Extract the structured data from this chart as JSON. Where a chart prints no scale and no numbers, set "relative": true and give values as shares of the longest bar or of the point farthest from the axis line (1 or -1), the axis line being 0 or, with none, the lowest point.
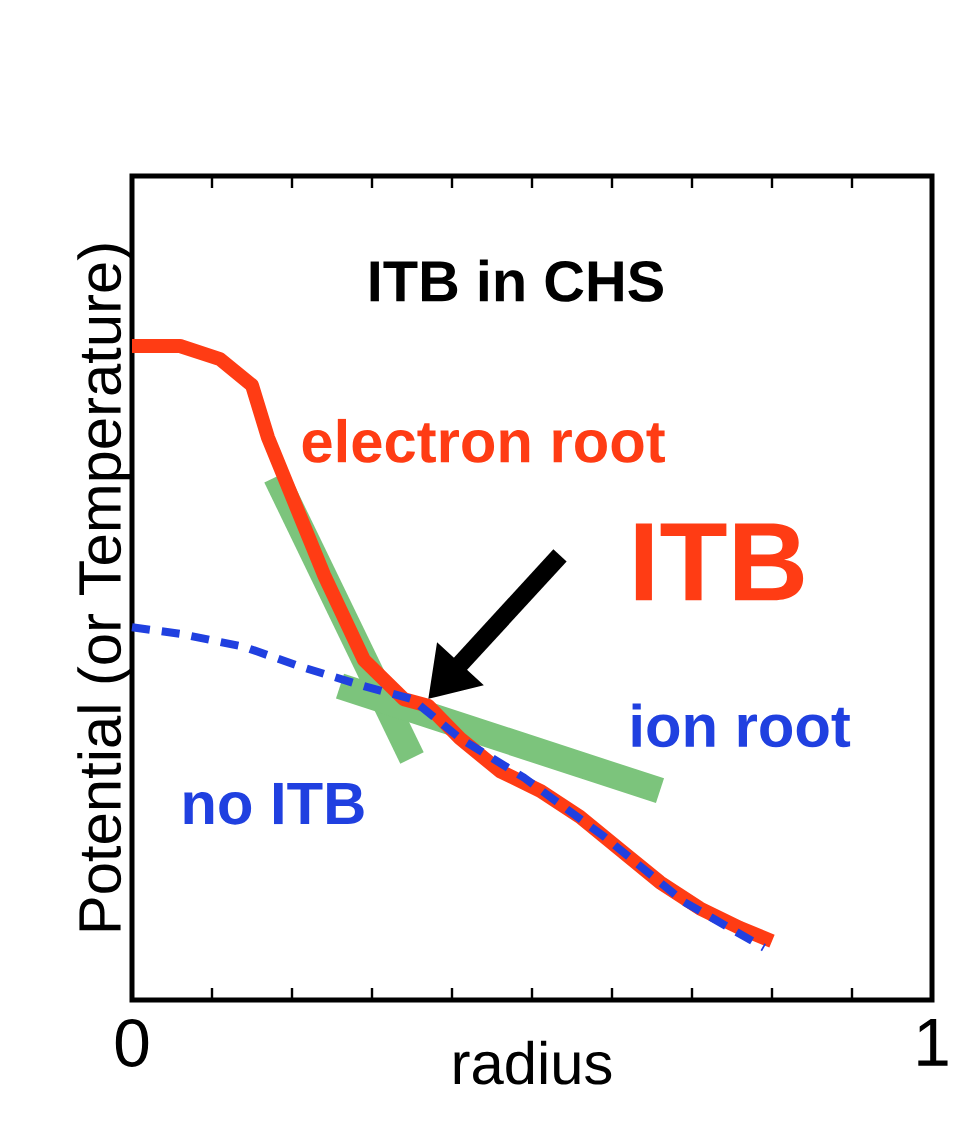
{
  "chart_data": {
    "type": "line",
    "relative": true,
    "title": "ITB in CHS",
    "xlabel": "radius",
    "ylabel": "Potential (or Temperature)",
    "xlim": [
      0,
      1
    ],
    "xticks": [
      0,
      {
        "value": 0.1,
        "label": null
      },
      {
        "value": 0.2,
        "label": null
      },
      {
        "value": 0.3,
        "label": null
      },
      {
        "value": 0.4,
        "label": null
      },
      {
        "value": 0.5,
        "label": null
      },
      {
        "value": 0.6,
        "label": null
      },
      {
        "value": 0.7,
        "label": null
      },
      {
        "value": 0.8,
        "label": null
      },
      {
        "value": 0.9,
        "label": null
      },
      1
    ],
    "legend": false,
    "series": [
      {
        "name": "electron root",
        "color": "#ff3c14",
        "line_style": "solid",
        "x": [
          0,
          0.06,
          0.11,
          0.15,
          0.17,
          0.2,
          0.24,
          0.29,
          0.34,
          0.37,
          0.41,
          0.46,
          0.51,
          0.56,
          0.61,
          0.66,
          0.71,
          0.76,
          0.8
        ],
        "values": [
          1.0,
          1.0,
          0.98,
          0.94,
          0.86,
          0.77,
          0.65,
          0.52,
          0.46,
          0.45,
          0.4,
          0.35,
          0.32,
          0.28,
          0.23,
          0.18,
          0.14,
          0.11,
          0.09
        ]
      },
      {
        "name": "ion root",
        "color": "#2040e0",
        "line_style": "dashed",
        "x": [
          0,
          0.06,
          0.14,
          0.21,
          0.29,
          0.35,
          0.41,
          0.49,
          0.59,
          0.69,
          0.79
        ],
        "values": [
          0.57,
          0.56,
          0.54,
          0.51,
          0.48,
          0.46,
          0.4,
          0.34,
          0.25,
          0.15,
          0.08
        ]
      },
      {
        "color": "#7cc47c",
        "line_style": "solid",
        "x": [
          0.18,
          0.35
        ],
        "values": [
          0.8,
          0.37
        ]
      },
      {
        "color": "#7cc47c",
        "line_style": "solid",
        "x": [
          0.26,
          0.66
        ],
        "values": [
          0.48,
          0.32
        ]
      }
    ],
    "annotations": [
      {
        "text": "ITB",
        "x": 0.37,
        "y": 0.46
      },
      "no ITB"
    ]
  }
}
